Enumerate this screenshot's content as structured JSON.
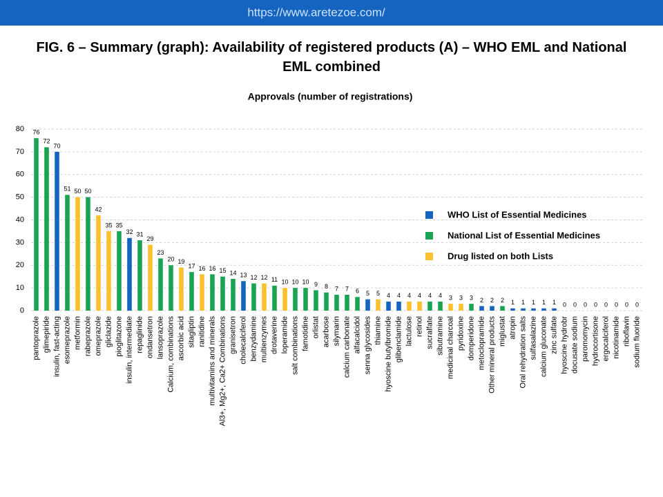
{
  "header": {
    "url": "https://www.aretezoe.com/"
  },
  "chart_data": {
    "type": "bar",
    "title": "FIG. 6 – Summary (graph): Availability of registered products (A) – WHO EML and National EML combined",
    "subtitle": "Approvals (number of registrations)",
    "categories": [
      "pantoprazole",
      "glimepiride",
      "insulin, fast-acting",
      "esomeprazole",
      "metformin",
      "rabeprazole",
      "omeprazole",
      "gliclazide",
      "pioglitazone",
      "insulin, intermediate",
      "repaglinide",
      "ondansetron",
      "lansoprazole",
      "Calcium, combinations",
      "ascorbic acid",
      "sitagliptin",
      "ranitidine",
      "multivitamins and minerals",
      "Al3+, Mg2+, Ca2+ Combinations",
      "granisetron",
      "cholecalciferol",
      "benzydamine",
      "multienzymes",
      "drotaverine",
      "loperamide",
      "salt combinations",
      "famotidine",
      "orlistat",
      "acarbose",
      "silymarin",
      "calcium carbonate",
      "alfacalcidol",
      "senna glycosides",
      "thiamine",
      "hyoscine butylbromide",
      "glibenclamide",
      "lactulose",
      "retinol",
      "sucralfate",
      "sibutramine",
      "medicinal charcoal",
      "pyridoxine",
      "domperidone",
      "metoclopramide",
      "Other mineral products",
      "miglustat",
      "atropin",
      "Oral rehydration salts",
      "sulfasalazine",
      "calcium gluconate",
      "zinc sulfate",
      "hyoscine hydrobr",
      "docusate sodium",
      "paromomycin",
      "hydrocortisone",
      "ergocalciferol",
      "nicotinamide",
      "riboflavin",
      "sodium fluoride"
    ],
    "values": [
      76,
      72,
      70,
      51,
      50,
      50,
      42,
      35,
      35,
      32,
      31,
      29,
      23,
      20,
      19,
      17,
      16,
      16,
      15,
      14,
      13,
      12,
      12,
      11,
      10,
      10,
      10,
      9,
      8,
      7,
      7,
      6,
      5,
      5,
      4,
      4,
      4,
      4,
      4,
      4,
      3,
      3,
      3,
      2,
      2,
      2,
      1,
      1,
      1,
      1,
      1,
      0,
      0,
      0,
      0,
      0,
      0,
      0,
      0
    ],
    "colors": [
      "#1aa352",
      "#1aa352",
      "#1565c0",
      "#1aa352",
      "#fbc02d",
      "#1aa352",
      "#fbc02d",
      "#fbc02d",
      "#1aa352",
      "#1565c0",
      "#1aa352",
      "#fbc02d",
      "#1aa352",
      "#1aa352",
      "#fbc02d",
      "#1aa352",
      "#fbc02d",
      "#1aa352",
      "#1aa352",
      "#1aa352",
      "#1565c0",
      "#1aa352",
      "#fbc02d",
      "#1aa352",
      "#fbc02d",
      "#1aa352",
      "#1aa352",
      "#1aa352",
      "#1aa352",
      "#1aa352",
      "#1aa352",
      "#1aa352",
      "#1565c0",
      "#fbc02d",
      "#1565c0",
      "#1565c0",
      "#fbc02d",
      "#fbc02d",
      "#1aa352",
      "#1aa352",
      "#fbc02d",
      "#fbc02d",
      "#1aa352",
      "#1565c0",
      "#1565c0",
      "#1aa352",
      "#1565c0",
      "#1565c0",
      "#1565c0",
      "#1565c0",
      "#1565c0",
      "#1565c0",
      "#1565c0",
      "#1565c0",
      "#1565c0",
      "#1565c0",
      "#1565c0",
      "#1565c0",
      "#1565c0"
    ],
    "legend": [
      {
        "name": "WHO List of Essential Medicines",
        "color": "#1565c0"
      },
      {
        "name": "National List of Essential Medicines",
        "color": "#1aa352"
      },
      {
        "name": "Drug listed on both Lists",
        "color": "#fbc02d"
      }
    ],
    "ylim": [
      0,
      80
    ],
    "yticks": [
      0,
      10,
      20,
      30,
      40,
      50,
      60,
      70,
      80
    ],
    "grid": true
  }
}
